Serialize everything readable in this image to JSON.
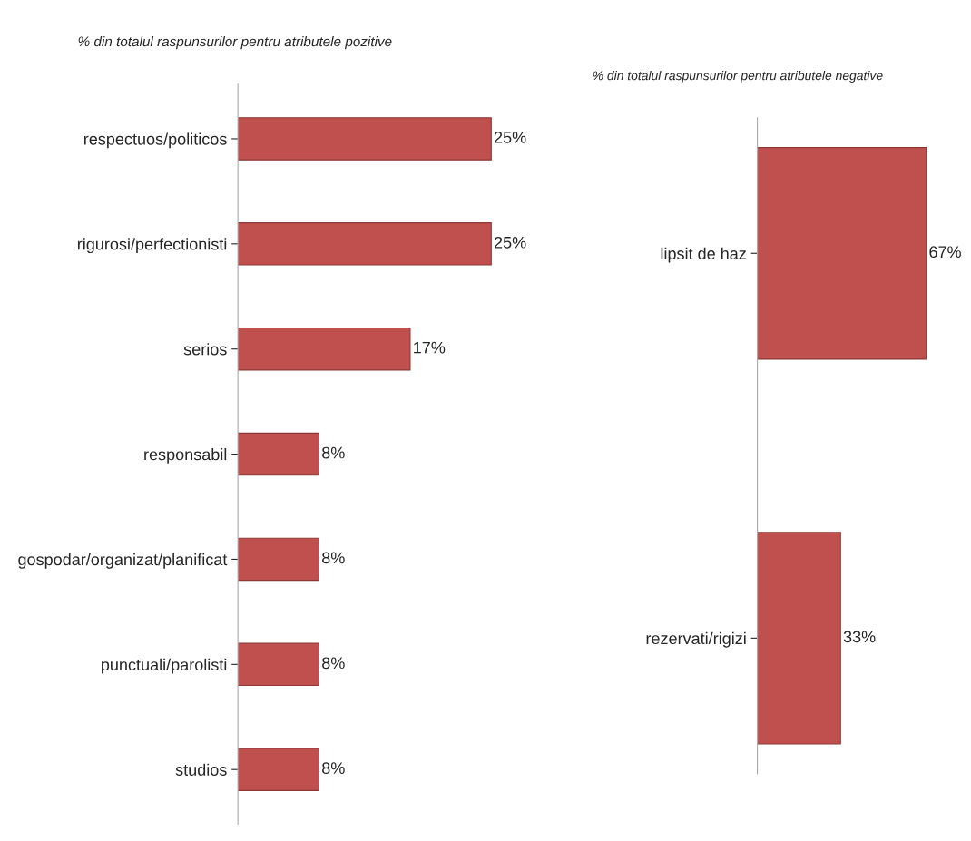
{
  "chart_data": [
    {
      "type": "bar",
      "orientation": "horizontal",
      "title": "% din totalul raspunsurilor pentru atributele pozitive",
      "categories": [
        "respectuos/politicos",
        "rigurosi/perfectionisti",
        "serios",
        "responsabil",
        "gospodar/organizat/planificat",
        "punctuali/parolisti",
        "studios"
      ],
      "values": [
        25,
        25,
        17,
        8,
        8,
        8,
        8
      ],
      "value_labels": [
        "25%",
        "25%",
        "17%",
        "8%",
        "8%",
        "8%",
        "8%"
      ],
      "color": "#c0504d",
      "tick_labels": "y",
      "grid": false
    },
    {
      "type": "bar",
      "orientation": "horizontal",
      "title": "% din totalul raspunsurilor pentru atributele negative",
      "categories": [
        "lipsit de haz",
        "rezervati/rigizi"
      ],
      "values": [
        67,
        33
      ],
      "value_labels": [
        "67%",
        "33%"
      ],
      "color": "#c0504d",
      "tick_labels": "y",
      "grid": false
    }
  ]
}
